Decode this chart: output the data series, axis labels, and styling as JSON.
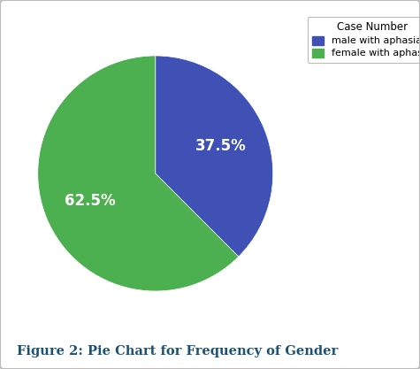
{
  "slices": [
    37.5,
    62.5
  ],
  "labels": [
    "male with aphasia",
    "female with aphasia"
  ],
  "colors": [
    "#3f51b5",
    "#4caf50"
  ],
  "legend_title": "Case Number",
  "caption": "Figure 2: Pie Chart for Frequency of Gender",
  "caption_color": "#1a5276",
  "caption_fontsize": 10.5,
  "autopct_fontsize": 12,
  "legend_fontsize": 8,
  "legend_title_fontsize": 8.5,
  "startangle": 90,
  "background_color": "#ffffff",
  "border_color": "#bbbbbb"
}
